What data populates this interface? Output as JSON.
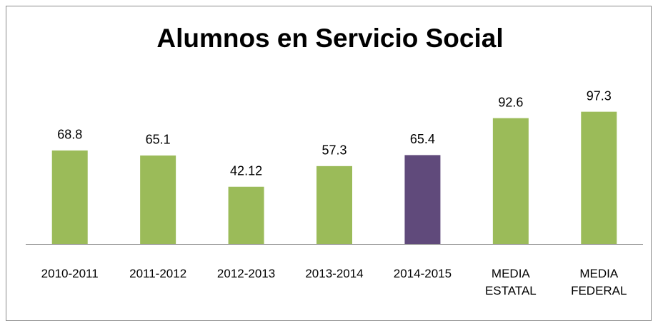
{
  "chart_data": {
    "type": "bar",
    "title": "Alumnos en Servicio Social",
    "categories": [
      "2010-2011",
      "2011-2012",
      "2012-2013",
      "2013-2014",
      "2014-2015",
      "MEDIA ESTATAL",
      "MEDIA FEDERAL"
    ],
    "values": [
      68.8,
      65.1,
      42.12,
      57.3,
      65.4,
      92.6,
      97.3
    ],
    "colors": [
      "#9bbb59",
      "#9bbb59",
      "#9bbb59",
      "#9bbb59",
      "#604a7b",
      "#9bbb59",
      "#9bbb59"
    ]
  }
}
